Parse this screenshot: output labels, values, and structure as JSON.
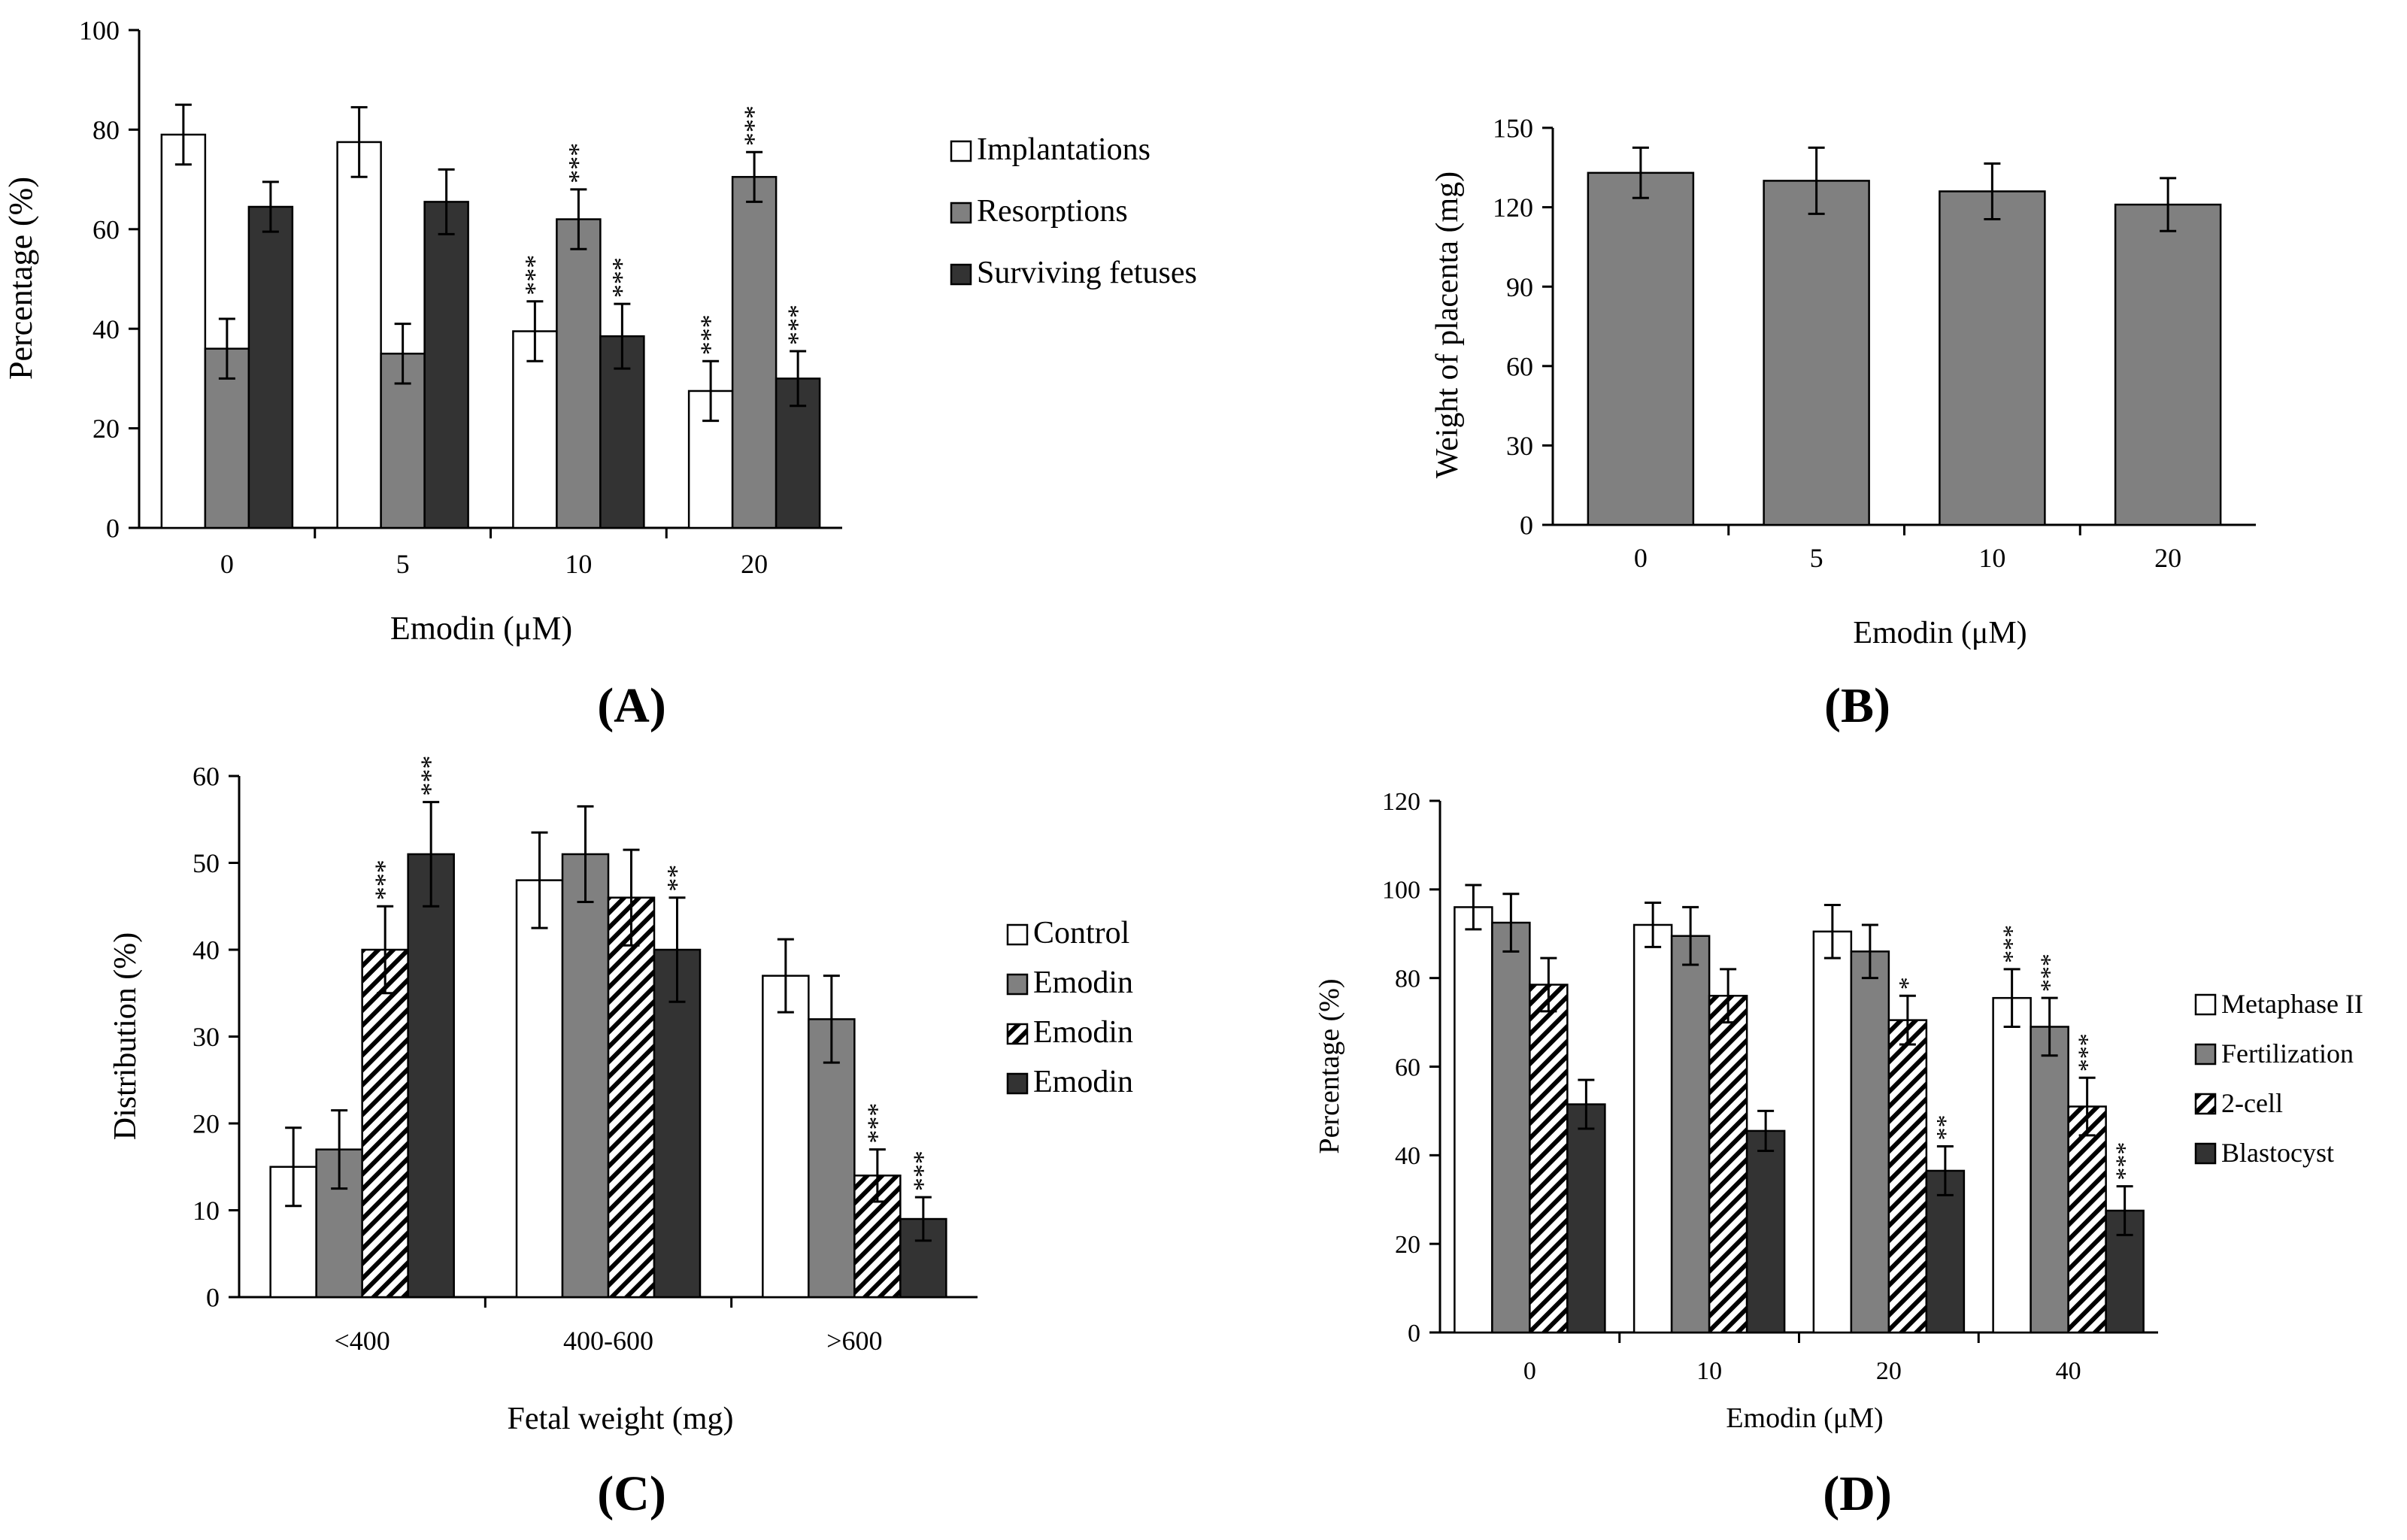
{
  "colors": {
    "white": "#ffffff",
    "gray": "#808080",
    "dark": "#333333",
    "axis": "#000000"
  },
  "chart_data": [
    {
      "id": "A",
      "type": "bar",
      "panel_label": "(A)",
      "title": "",
      "xlabel": "Emodin (μM)",
      "ylabel": "Percentage (%)",
      "ylim": [
        0,
        100
      ],
      "yticks": [
        0,
        20,
        40,
        60,
        80,
        100
      ],
      "categories": [
        "0",
        "5",
        "10",
        "20"
      ],
      "legend_position": "right",
      "series": [
        {
          "name": "Implantations",
          "fill": "white",
          "values": [
            79,
            77.5,
            39.5,
            27.5
          ],
          "errors": [
            6,
            7,
            6,
            6
          ],
          "sig": [
            "",
            "",
            "***",
            "***"
          ]
        },
        {
          "name": "Resorptions",
          "fill": "gray",
          "values": [
            36,
            35,
            62,
            70.5
          ],
          "errors": [
            6,
            6,
            6,
            5
          ],
          "sig": [
            "",
            "",
            "***",
            "***"
          ]
        },
        {
          "name": "Surviving fetuses",
          "fill": "dark",
          "values": [
            64.5,
            65.5,
            38.5,
            30
          ],
          "errors": [
            5,
            6.5,
            6.5,
            5.5
          ],
          "sig": [
            "",
            "",
            "***",
            "***"
          ]
        }
      ]
    },
    {
      "id": "B",
      "type": "bar",
      "panel_label": "(B)",
      "title": "",
      "xlabel": "Emodin (μM)",
      "ylabel": "Weight of placenta (mg)",
      "ylim": [
        0,
        150
      ],
      "yticks": [
        0,
        30,
        60,
        90,
        120,
        150
      ],
      "categories": [
        "0",
        "5",
        "10",
        "20"
      ],
      "legend_position": "none",
      "series": [
        {
          "name": "Weight of placenta",
          "fill": "gray",
          "values": [
            133,
            130,
            126,
            121
          ],
          "errors": [
            9.5,
            12.5,
            10.5,
            10
          ],
          "sig": [
            "",
            "",
            "",
            ""
          ]
        }
      ]
    },
    {
      "id": "C",
      "type": "bar",
      "panel_label": "(C)",
      "title": "",
      "xlabel": "Fetal weight (mg)",
      "ylabel": "Distribution (%)",
      "ylim": [
        0,
        60
      ],
      "yticks": [
        0,
        10,
        20,
        30,
        40,
        50,
        60
      ],
      "categories": [
        "<400",
        "400-600",
        ">600"
      ],
      "legend_position": "right",
      "series": [
        {
          "name": "Control",
          "fill": "white",
          "values": [
            15,
            48,
            37
          ],
          "errors": [
            4.5,
            5.5,
            4.2
          ],
          "sig": [
            "",
            "",
            ""
          ]
        },
        {
          "name": "Emodin",
          "fill": "gray",
          "values": [
            17,
            51,
            32
          ],
          "errors": [
            4.5,
            5.5,
            5
          ],
          "sig": [
            "",
            "",
            ""
          ]
        },
        {
          "name": "Emodin",
          "fill": "hatch",
          "values": [
            40,
            46,
            14
          ],
          "errors": [
            5,
            5.5,
            3
          ],
          "sig": [
            "***",
            "",
            "***"
          ]
        },
        {
          "name": "Emodin",
          "fill": "dark",
          "values": [
            51,
            40,
            9
          ],
          "errors": [
            6,
            6,
            2.5
          ],
          "sig": [
            "***",
            "**",
            "***"
          ]
        }
      ]
    },
    {
      "id": "D",
      "type": "bar",
      "panel_label": "(D)",
      "title": "",
      "xlabel": "Emodin (μM)",
      "ylabel": "Percentage (%)",
      "ylim": [
        0,
        120
      ],
      "yticks": [
        0,
        20,
        40,
        60,
        80,
        100,
        120
      ],
      "categories": [
        "0",
        "10",
        "20",
        "40"
      ],
      "legend_position": "right",
      "series": [
        {
          "name": "Metaphase II",
          "fill": "white",
          "values": [
            96,
            92,
            90.5,
            75.5
          ],
          "errors": [
            5,
            5,
            6,
            6.5
          ],
          "sig": [
            "",
            "",
            "",
            "***"
          ]
        },
        {
          "name": "Fertilization",
          "fill": "gray",
          "values": [
            92.5,
            89.5,
            86,
            69
          ],
          "errors": [
            6.5,
            6.5,
            6,
            6.5
          ],
          "sig": [
            "",
            "",
            "",
            "***"
          ]
        },
        {
          "name": "2-cell",
          "fill": "hatch",
          "values": [
            78.5,
            76,
            70.5,
            51
          ],
          "errors": [
            6,
            6,
            5.5,
            6.5
          ],
          "sig": [
            "",
            "",
            "*",
            "***"
          ]
        },
        {
          "name": "Blastocyst",
          "fill": "dark",
          "values": [
            51.5,
            45.5,
            36.5,
            27.5
          ],
          "errors": [
            5.5,
            4.5,
            5.5,
            5.5
          ],
          "sig": [
            "",
            "",
            "**",
            "***"
          ]
        }
      ]
    }
  ]
}
